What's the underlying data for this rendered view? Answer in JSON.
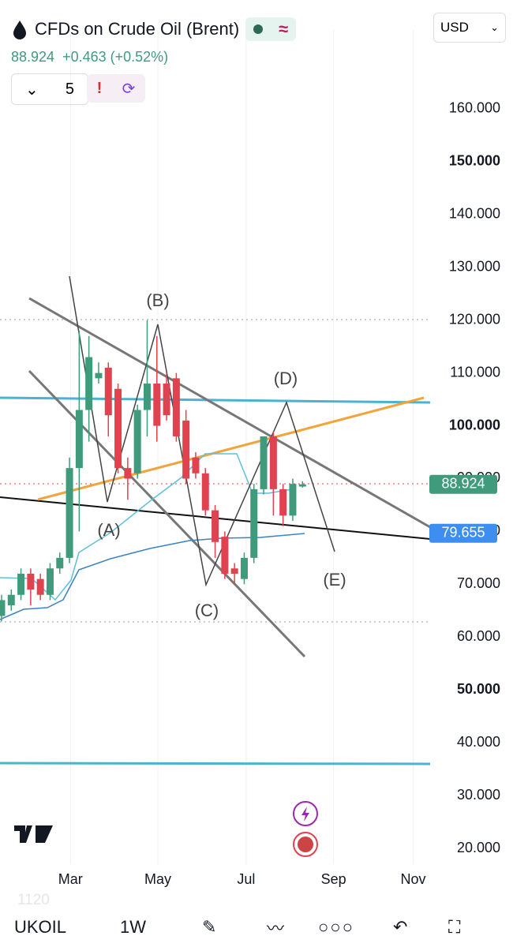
{
  "header": {
    "title": "CFDs on Crude Oil (Brent)",
    "price": "88.924",
    "change": "+0.463 (+0.52%)",
    "indicator_count": "5",
    "currency": "USD"
  },
  "chart_data": {
    "type": "candlestick",
    "open": [
      64,
      66,
      68,
      72,
      71,
      68,
      73,
      75,
      92,
      103,
      109,
      111,
      107,
      92,
      91,
      103,
      108,
      108,
      109,
      101,
      94,
      91,
      84,
      79,
      73,
      71,
      75,
      88,
      98,
      88,
      83,
      88.5
    ],
    "high": [
      68,
      69,
      73,
      73,
      72,
      74,
      76,
      94,
      118,
      117,
      112,
      112,
      108,
      94,
      104,
      120,
      117,
      110,
      110,
      103,
      95,
      92,
      85,
      80,
      74,
      76,
      89,
      98,
      99,
      89,
      90,
      89.5
    ],
    "low": [
      63,
      65,
      67,
      66,
      67,
      67,
      72,
      74,
      80,
      97,
      108,
      98,
      91,
      86,
      90,
      98,
      97,
      101,
      97,
      89,
      90,
      83,
      75,
      71,
      70,
      70,
      74,
      87,
      83,
      81,
      82,
      88.3
    ],
    "close": [
      67,
      68,
      72,
      69,
      68,
      73,
      75,
      92,
      103,
      113,
      110,
      102,
      92,
      90,
      103,
      108,
      100,
      102,
      98,
      90,
      91,
      84,
      78,
      72,
      72,
      75,
      88,
      98,
      88,
      83,
      89,
      88.924
    ],
    "up_color": "#3f9b7c",
    "down_color": "#e0424f",
    "xlim": [
      -0.16,
      44.15
    ],
    "ylim": [
      17,
      175
    ],
    "xticks": [
      {
        "value": 7.1,
        "label": "Mar"
      },
      {
        "value": 16.1,
        "label": "May"
      },
      {
        "value": 25.2,
        "label": "Jul"
      },
      {
        "value": 34.2,
        "label": "Sep"
      },
      {
        "value": 42.4,
        "label": "Nov"
      }
    ],
    "yticks": [
      {
        "value": 20,
        "label": "20.000"
      },
      {
        "value": 30,
        "label": "30.000"
      },
      {
        "value": 40,
        "label": "40.000"
      },
      {
        "value": 50,
        "label": "50.000"
      },
      {
        "value": 60,
        "label": "60.000"
      },
      {
        "value": 70,
        "label": "70.000"
      },
      {
        "value": 80,
        "label": "80.000"
      },
      {
        "value": 90,
        "label": "90.000"
      },
      {
        "value": 100,
        "label": "100.000"
      },
      {
        "value": 110,
        "label": "110.000"
      },
      {
        "value": 120,
        "label": "120.000"
      },
      {
        "value": 130,
        "label": "130.000"
      },
      {
        "value": 140,
        "label": "140.000"
      },
      {
        "value": 150,
        "label": "150.000"
      },
      {
        "value": 160,
        "label": "160.000"
      }
    ],
    "grid": true,
    "annotations": [
      "(A)",
      "(B)",
      "(C)",
      "(D)",
      "(E)"
    ],
    "price_labels": [
      {
        "value": 88.924,
        "label": "88.924",
        "color": "#3f9b7c"
      },
      {
        "value": 79.655,
        "label": "79.655",
        "color": "#3d8ef0"
      }
    ]
  },
  "toolbar": {
    "watermark": "1120",
    "symbol": "UKOIL",
    "interval": "1W"
  }
}
